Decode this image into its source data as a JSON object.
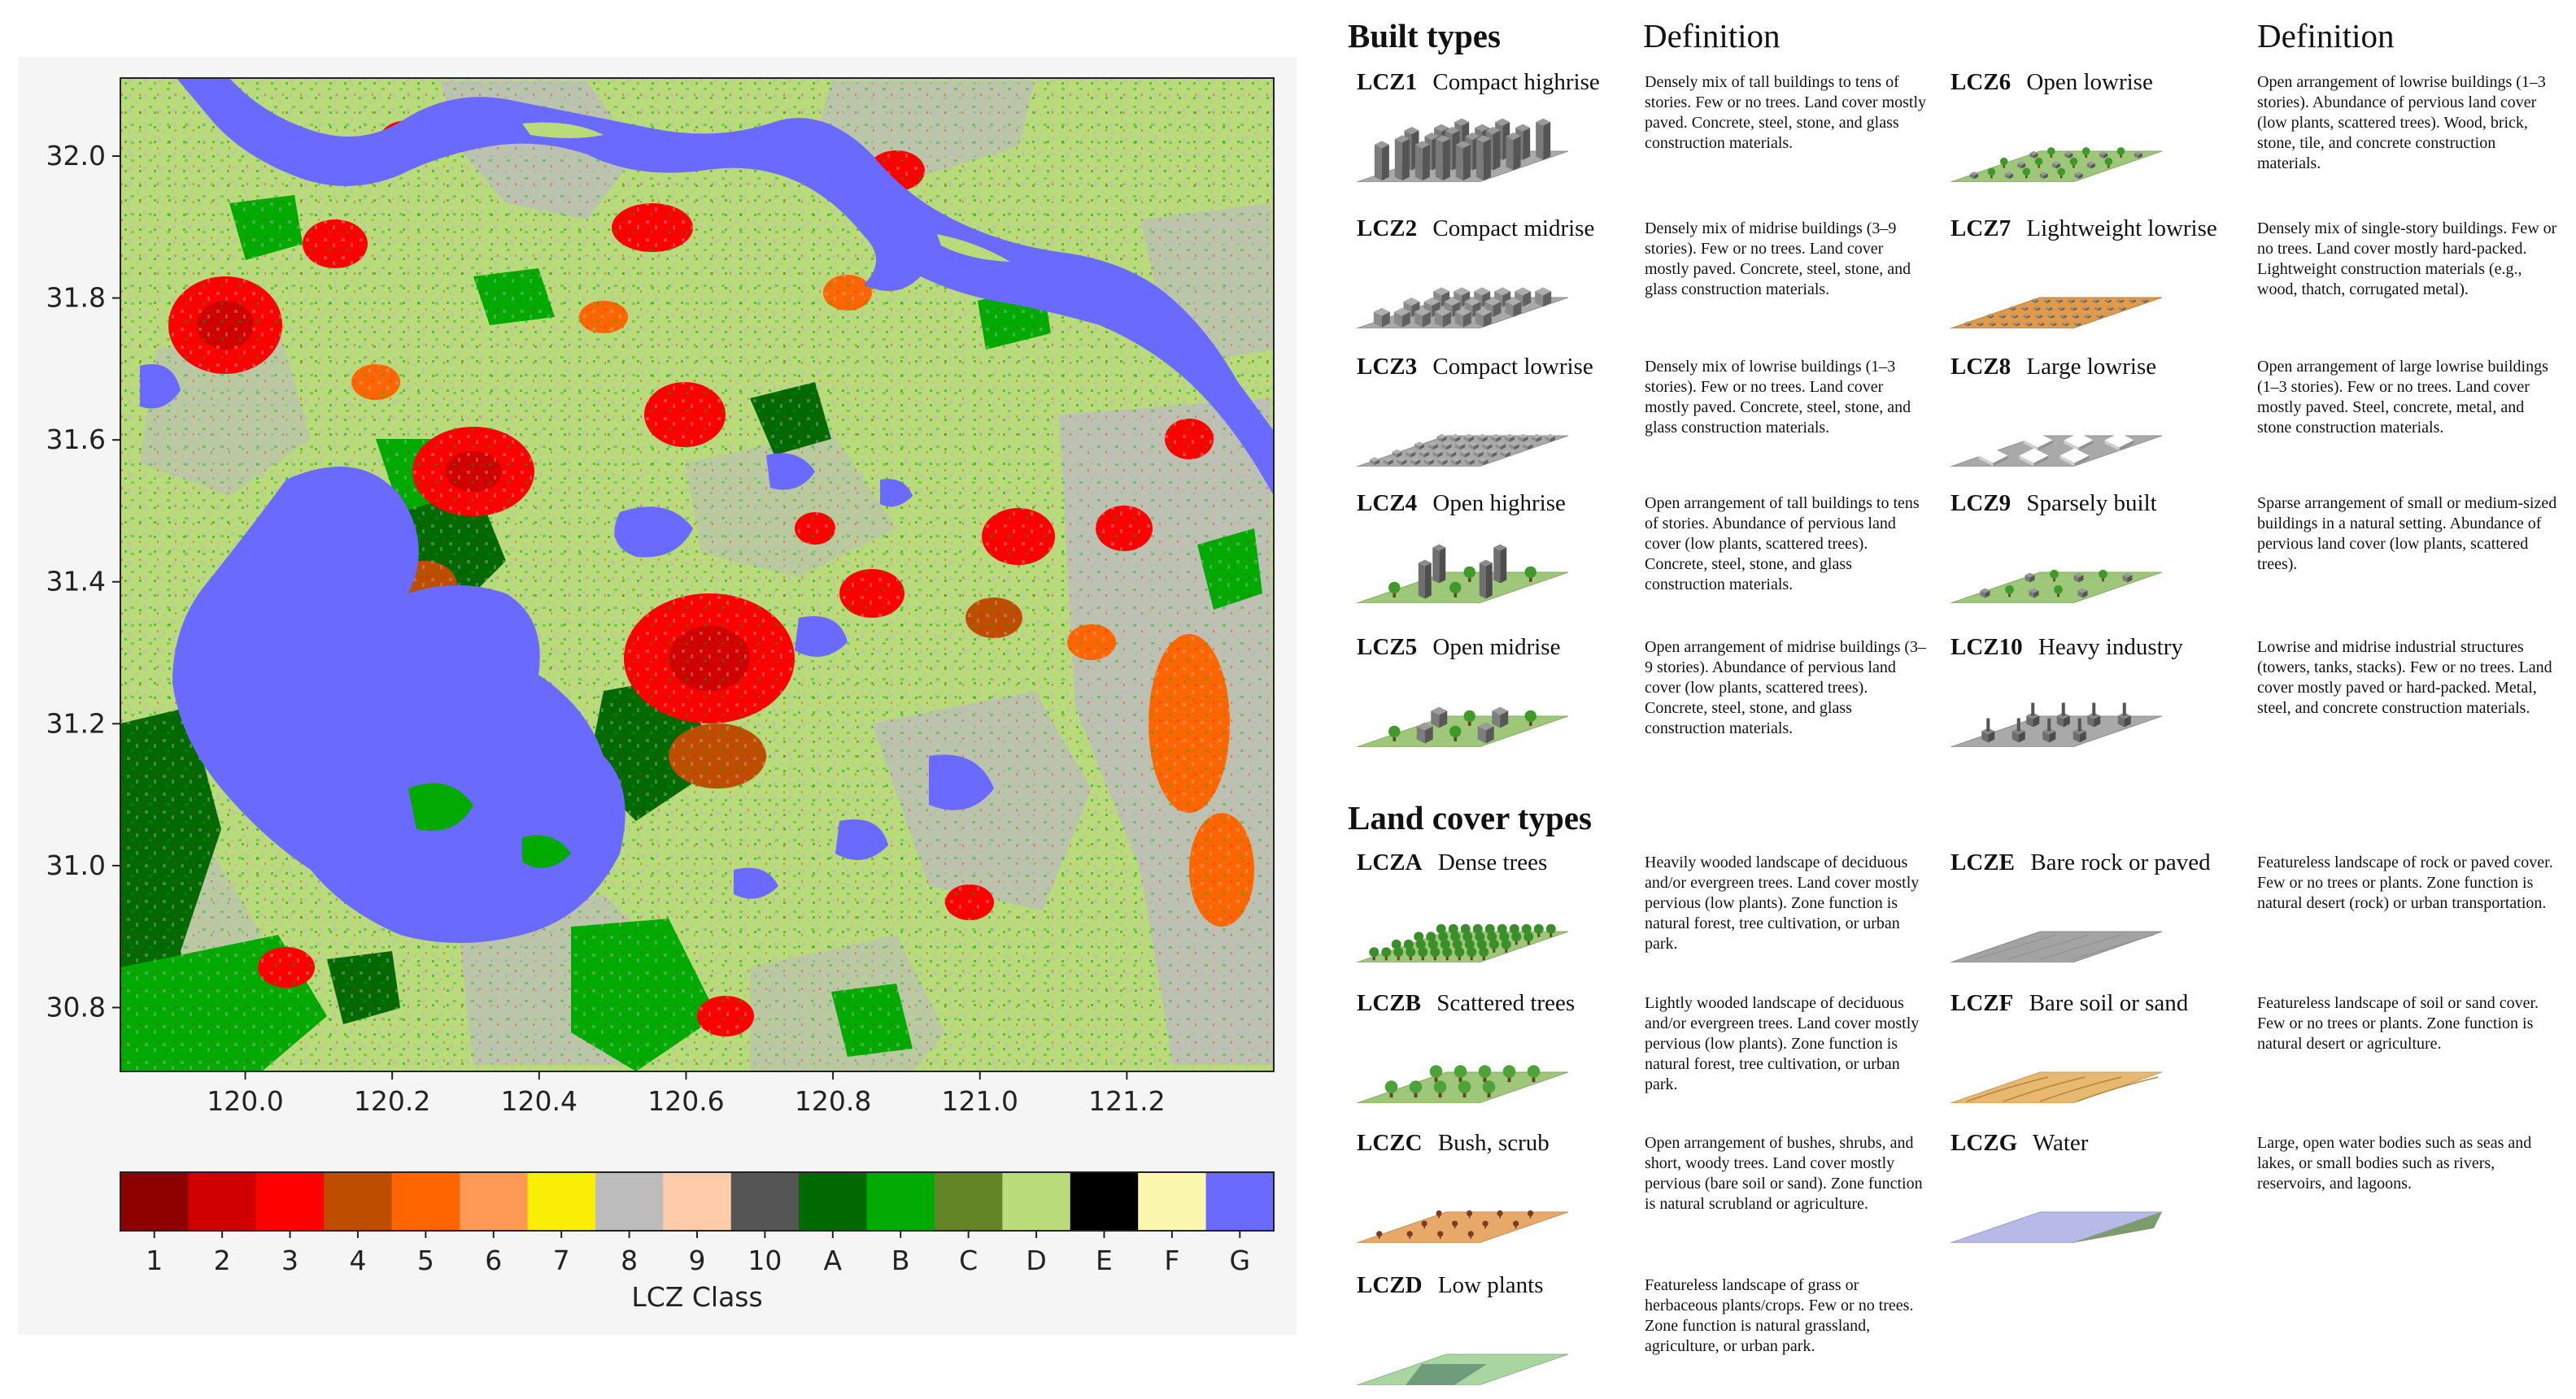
{
  "map": {
    "x_ticks": [
      "120.0",
      "120.2",
      "120.4",
      "120.6",
      "120.8",
      "121.0",
      "121.2"
    ],
    "y_ticks": [
      "32.0",
      "31.8",
      "31.6",
      "31.4",
      "31.2",
      "31.0",
      "30.8"
    ],
    "x_range": [
      119.83,
      121.4
    ],
    "y_range": [
      30.71,
      32.11
    ],
    "colorbar_label": "LCZ Class",
    "classes": [
      {
        "label": "1",
        "color": "#8C0000"
      },
      {
        "label": "2",
        "color": "#D10000"
      },
      {
        "label": "3",
        "color": "#FF0000"
      },
      {
        "label": "4",
        "color": "#BF4D00"
      },
      {
        "label": "5",
        "color": "#FF6600"
      },
      {
        "label": "6",
        "color": "#FF9955"
      },
      {
        "label": "7",
        "color": "#FAEE05"
      },
      {
        "label": "8",
        "color": "#BCBCBC"
      },
      {
        "label": "9",
        "color": "#FFCCAA"
      },
      {
        "label": "10",
        "color": "#555555"
      },
      {
        "label": "A",
        "color": "#006A00"
      },
      {
        "label": "B",
        "color": "#00AA00"
      },
      {
        "label": "C",
        "color": "#648525"
      },
      {
        "label": "D",
        "color": "#B9DB79"
      },
      {
        "label": "E",
        "color": "#000000"
      },
      {
        "label": "F",
        "color": "#FBF7AE"
      },
      {
        "label": "G",
        "color": "#6A6AFF"
      }
    ]
  },
  "legend": {
    "built_title": "Built types",
    "land_title": "Land cover types",
    "definition_label_left": "Definition",
    "definition_label_right": "Definition",
    "built": [
      {
        "code": "LCZ1",
        "name": "Compact highrise",
        "def": "Densely mix of tall buildings to tens of stories. Few or no trees. Land cover mostly paved. Concrete, steel, stone, and glass construction materials."
      },
      {
        "code": "LCZ2",
        "name": "Compact midrise",
        "def": "Densely mix of midrise buildings (3–9 stories). Few or no trees. Land cover mostly paved. Concrete, steel, stone, and glass construction materials."
      },
      {
        "code": "LCZ3",
        "name": "Compact lowrise",
        "def": "Densely mix of lowrise buildings (1–3 stories). Few or no trees. Land cover mostly paved. Concrete, steel, stone, and glass construction materials."
      },
      {
        "code": "LCZ4",
        "name": "Open highrise",
        "def": "Open arrangement of tall buildings to tens of stories. Abundance of pervious land cover (low plants, scattered trees). Concrete, steel, stone, and glass construction materials."
      },
      {
        "code": "LCZ5",
        "name": "Open midrise",
        "def": "Open arrangement of midrise buildings (3–9 stories). Abundance of pervious land cover (low plants, scattered trees). Concrete, steel, stone, and glass construction materials."
      },
      {
        "code": "LCZ6",
        "name": "Open lowrise",
        "def": "Open arrangement of lowrise buildings (1–3 stories). Abundance of pervious land cover (low plants, scattered trees). Wood, brick, stone, tile, and concrete construction materials."
      },
      {
        "code": "LCZ7",
        "name": "Lightweight lowrise",
        "def": "Densely mix of single-story buildings. Few or no trees. Land cover mostly hard-packed. Lightweight construction materials (e.g., wood, thatch, corrugated metal)."
      },
      {
        "code": "LCZ8",
        "name": "Large lowrise",
        "def": "Open arrangement of large lowrise buildings (1–3 stories). Few or no trees. Land cover mostly paved. Steel, concrete, metal, and stone construction materials."
      },
      {
        "code": "LCZ9",
        "name": "Sparsely built",
        "def": "Sparse arrangement of small or medium-sized buildings in a natural setting. Abundance of pervious land cover (low plants, scattered trees)."
      },
      {
        "code": "LCZ10",
        "name": "Heavy industry",
        "def": "Lowrise and midrise industrial structures (towers, tanks, stacks). Few or no trees. Land cover mostly paved or hard-packed. Metal, steel, and concrete construction materials."
      }
    ],
    "land": [
      {
        "code": "LCZA",
        "name": "Dense trees",
        "def": "Heavily wooded landscape of deciduous and/or evergreen trees. Land cover mostly pervious (low plants). Zone function is natural forest, tree cultivation, or urban park."
      },
      {
        "code": "LCZB",
        "name": "Scattered trees",
        "def": "Lightly wooded landscape of deciduous and/or evergreen trees. Land cover mostly pervious (low plants). Zone function is natural forest, tree cultivation, or urban park."
      },
      {
        "code": "LCZC",
        "name": "Bush, scrub",
        "def": "Open arrangement of bushes, shrubs, and short, woody trees. Land cover mostly pervious (bare soil or sand). Zone function is natural scrubland or agriculture."
      },
      {
        "code": "LCZD",
        "name": "Low plants",
        "def": "Featureless landscape of grass or herbaceous plants/crops. Few or no trees. Zone function is natural grassland, agriculture, or urban park."
      },
      {
        "code": "LCZE",
        "name": "Bare rock or paved",
        "def": "Featureless landscape of rock or paved cover. Few or no trees or plants. Zone function is natural desert (rock) or urban transportation."
      },
      {
        "code": "LCZF",
        "name": "Bare soil or sand",
        "def": "Featureless landscape of soil or sand cover. Few or no trees or plants. Zone function is natural desert or agriculture."
      },
      {
        "code": "LCZG",
        "name": "Water",
        "def": "Large, open water bodies such as seas and lakes, or small bodies such as rivers, reservoirs, and lagoons."
      }
    ]
  }
}
